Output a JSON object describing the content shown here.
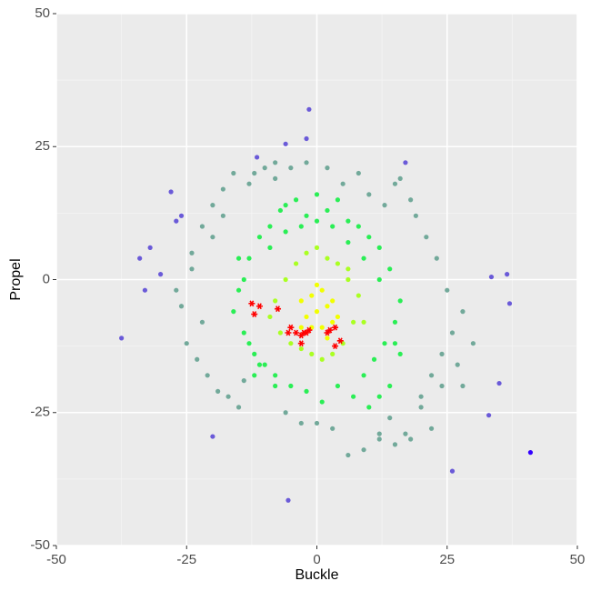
{
  "chart_data": {
    "type": "scatter",
    "xlabel": "Buckle",
    "ylabel": "Propel",
    "xlim": [
      -50,
      50
    ],
    "ylim": [
      -50,
      50
    ],
    "xticks": [
      -50,
      -25,
      0,
      25,
      50
    ],
    "yticks": [
      -50,
      -25,
      0,
      25,
      50
    ],
    "grid": true,
    "series": [
      {
        "color": "#72a99a",
        "marker": "circle",
        "x": [
          -26,
          -24,
          -22,
          -20,
          -18,
          -16,
          -25,
          -23,
          -21,
          -19,
          -24,
          -20,
          -17,
          -15,
          -13,
          -10,
          -8,
          -14,
          -22,
          -18,
          -12,
          20,
          22,
          24,
          26,
          28,
          25,
          23,
          21,
          19,
          18,
          16,
          14,
          20,
          24,
          27,
          22,
          18,
          15,
          12,
          9,
          6,
          3,
          0,
          -3,
          -6,
          10,
          8,
          5,
          2,
          -2,
          -5,
          -8,
          12,
          15,
          28,
          30,
          -27,
          17,
          13
        ],
        "values": [
          -5,
          5,
          10,
          14,
          17,
          20,
          -12,
          -15,
          -18,
          -21,
          2,
          8,
          -22,
          -24,
          18,
          21,
          22,
          -19,
          -8,
          12,
          20,
          -22,
          -18,
          -14,
          -10,
          -6,
          -2,
          4,
          8,
          12,
          15,
          19,
          -26,
          -24,
          -20,
          -16,
          -28,
          -30,
          -31,
          -29,
          -32,
          -33,
          -28,
          -27,
          -27,
          -25,
          16,
          20,
          18,
          21,
          22,
          21,
          19,
          -30,
          18,
          -20,
          -12,
          -2,
          -29,
          14
        ]
      },
      {
        "color": "#2aee55",
        "marker": "circle",
        "x": [
          -15,
          -13,
          -11,
          -9,
          -7,
          -14,
          -12,
          -10,
          -16,
          -14,
          -12,
          -8,
          -6,
          -4,
          -2,
          0,
          2,
          4,
          6,
          8,
          10,
          12,
          14,
          16,
          15,
          13,
          11,
          9,
          14,
          16,
          12,
          10,
          7,
          4,
          1,
          -2,
          -5,
          -8,
          -11,
          -13,
          -9,
          -6,
          -3,
          0,
          3,
          6,
          9,
          12,
          -15,
          15
        ],
        "values": [
          -2,
          4,
          8,
          10,
          13,
          -10,
          -14,
          -16,
          -6,
          0,
          -18,
          -20,
          14,
          15,
          12,
          16,
          13,
          15,
          11,
          10,
          8,
          6,
          2,
          -4,
          -8,
          -12,
          -15,
          -18,
          -20,
          -14,
          -22,
          -24,
          -22,
          -20,
          -23,
          -21,
          -20,
          -18,
          -16,
          -12,
          6,
          9,
          10,
          11,
          10,
          7,
          4,
          0,
          4,
          -12
        ]
      },
      {
        "color": "#aaff22",
        "marker": "circle",
        "x": [
          -8,
          -6,
          -4,
          -2,
          0,
          2,
          4,
          6,
          8,
          7,
          5,
          3,
          1,
          -1,
          -3,
          -5,
          -7,
          -9,
          9,
          6
        ],
        "values": [
          -4,
          0,
          3,
          5,
          6,
          4,
          3,
          0,
          -3,
          -8,
          -12,
          -14,
          -15,
          -14,
          -13,
          -12,
          -10,
          -7,
          -8,
          2
        ]
      },
      {
        "color": "#f2ff00",
        "marker": "circle",
        "x": [
          -3,
          -1,
          1,
          3,
          -2,
          0,
          2,
          4,
          -1,
          1,
          3,
          -3,
          0,
          2
        ],
        "values": [
          -4,
          -3,
          -2,
          -4,
          -7,
          -6,
          -5,
          -7,
          -9,
          -9,
          -8,
          -9,
          -1,
          -11
        ]
      },
      {
        "color": "#6a5ad8",
        "marker": "circle",
        "x": [
          -37.5,
          -34,
          -33,
          -32,
          -30,
          -28,
          -20,
          -5.5,
          -1.5,
          -2,
          -6,
          -11.5,
          17,
          37,
          36.5,
          33.5,
          35,
          33,
          26,
          -26,
          -27
        ],
        "values": [
          -11,
          4,
          -2,
          6,
          1,
          16.5,
          -29.5,
          -41.5,
          32,
          26.5,
          25.5,
          23,
          22,
          -4.5,
          1,
          0.5,
          -19.5,
          -25.5,
          -36,
          12,
          11
        ]
      },
      {
        "color": "#3300ff",
        "marker": "circle",
        "x": [
          41
        ],
        "values": [
          -32.5
        ]
      },
      {
        "color": "#ff0000",
        "marker": "asterisk",
        "x": [
          -12.5,
          -12,
          -11,
          -7.5,
          -5,
          -5.5,
          -4,
          -3,
          -2.5,
          -2,
          -3,
          -1.5,
          2,
          2.5,
          3.5,
          4.5,
          3.5
        ],
        "values": [
          -4.5,
          -6.5,
          -5,
          -5.5,
          -9,
          -10,
          -10,
          -10.5,
          -10,
          -10,
          -12,
          -9.5,
          -10,
          -9.5,
          -9,
          -11.5,
          -12.5
        ]
      }
    ]
  }
}
